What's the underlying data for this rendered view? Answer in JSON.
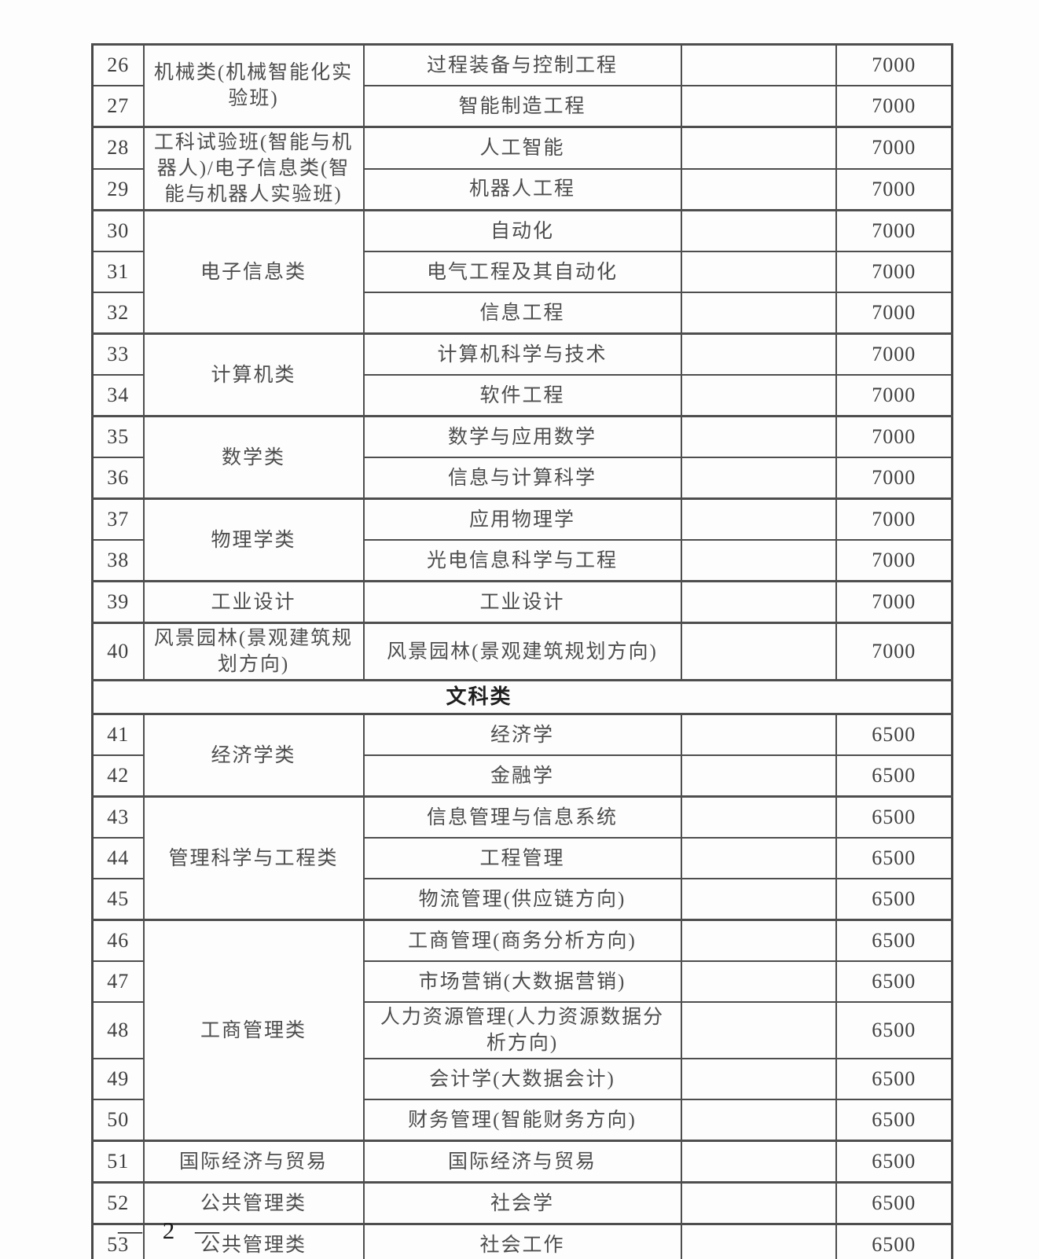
{
  "document": {
    "footer_page_label": "— 2 —"
  },
  "fee_table": {
    "columns": [
      "serial",
      "category",
      "major",
      "note",
      "fee"
    ],
    "blocks": [
      {
        "type": "group",
        "category": "机械类(机械智能化实验班)",
        "rows": [
          {
            "no": "26",
            "major": "过程装备与控制工程",
            "note": "",
            "fee": "7000"
          },
          {
            "no": "27",
            "major": "智能制造工程",
            "note": "",
            "fee": "7000"
          }
        ]
      },
      {
        "type": "group",
        "category": "工科试验班(智能与机器人)/电子信息类(智能与机器人实验班)",
        "rows": [
          {
            "no": "28",
            "major": "人工智能",
            "note": "",
            "fee": "7000"
          },
          {
            "no": "29",
            "major": "机器人工程",
            "note": "",
            "fee": "7000"
          }
        ]
      },
      {
        "type": "group",
        "category": "电子信息类",
        "rows": [
          {
            "no": "30",
            "major": "自动化",
            "note": "",
            "fee": "7000"
          },
          {
            "no": "31",
            "major": "电气工程及其自动化",
            "note": "",
            "fee": "7000"
          },
          {
            "no": "32",
            "major": "信息工程",
            "note": "",
            "fee": "7000"
          }
        ]
      },
      {
        "type": "group",
        "category": "计算机类",
        "rows": [
          {
            "no": "33",
            "major": "计算机科学与技术",
            "note": "",
            "fee": "7000"
          },
          {
            "no": "34",
            "major": "软件工程",
            "note": "",
            "fee": "7000"
          }
        ]
      },
      {
        "type": "group",
        "category": "数学类",
        "rows": [
          {
            "no": "35",
            "major": "数学与应用数学",
            "note": "",
            "fee": "7000"
          },
          {
            "no": "36",
            "major": "信息与计算科学",
            "note": "",
            "fee": "7000"
          }
        ]
      },
      {
        "type": "group",
        "category": "物理学类",
        "rows": [
          {
            "no": "37",
            "major": "应用物理学",
            "note": "",
            "fee": "7000"
          },
          {
            "no": "38",
            "major": "光电信息科学与工程",
            "note": "",
            "fee": "7000"
          }
        ]
      },
      {
        "type": "group",
        "category": "工业设计",
        "rows": [
          {
            "no": "39",
            "major": "工业设计",
            "note": "",
            "fee": "7000"
          }
        ]
      },
      {
        "type": "group",
        "category": "风景园林(景观建筑规划方向)",
        "rows": [
          {
            "no": "40",
            "major": "风景园林(景观建筑规划方向)",
            "note": "",
            "fee": "7000"
          }
        ]
      },
      {
        "type": "section",
        "label": "文科类"
      },
      {
        "type": "group",
        "category": "经济学类",
        "rows": [
          {
            "no": "41",
            "major": "经济学",
            "note": "",
            "fee": "6500"
          },
          {
            "no": "42",
            "major": "金融学",
            "note": "",
            "fee": "6500"
          }
        ]
      },
      {
        "type": "group",
        "category": "管理科学与工程类",
        "rows": [
          {
            "no": "43",
            "major": "信息管理与信息系统",
            "note": "",
            "fee": "6500"
          },
          {
            "no": "44",
            "major": "工程管理",
            "note": "",
            "fee": "6500"
          },
          {
            "no": "45",
            "major": "物流管理(供应链方向)",
            "note": "",
            "fee": "6500"
          }
        ]
      },
      {
        "type": "group",
        "category": "工商管理类",
        "rows": [
          {
            "no": "46",
            "major": "工商管理(商务分析方向)",
            "note": "",
            "fee": "6500"
          },
          {
            "no": "47",
            "major": "市场营销(大数据营销)",
            "note": "",
            "fee": "6500"
          },
          {
            "no": "48",
            "major": "人力资源管理(人力资源数据分析方向)",
            "note": "",
            "fee": "6500"
          },
          {
            "no": "49",
            "major": "会计学(大数据会计)",
            "note": "",
            "fee": "6500"
          },
          {
            "no": "50",
            "major": "财务管理(智能财务方向)",
            "note": "",
            "fee": "6500"
          }
        ]
      },
      {
        "type": "group",
        "category": "国际经济与贸易",
        "rows": [
          {
            "no": "51",
            "major": "国际经济与贸易",
            "note": "",
            "fee": "6500"
          }
        ]
      },
      {
        "type": "group",
        "category": "公共管理类",
        "rows": [
          {
            "no": "52",
            "major": "社会学",
            "note": "",
            "fee": "6500"
          }
        ]
      },
      {
        "type": "group",
        "category": "公共管理类",
        "rows": [
          {
            "no": "53",
            "major": "社会工作",
            "note": "",
            "fee": "6500"
          }
        ]
      }
    ]
  }
}
